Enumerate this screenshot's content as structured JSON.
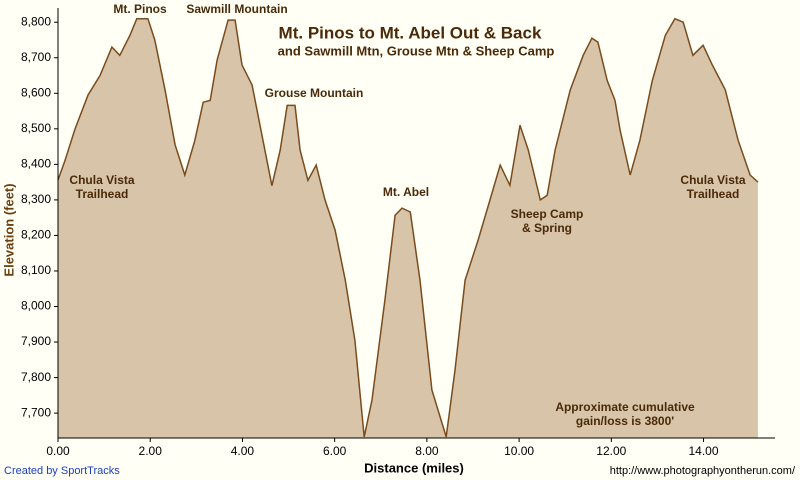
{
  "chart_data": {
    "type": "area",
    "title": "Mt. Pinos to Mt. Abel Out & Back",
    "subtitle": "and Sawmill Mtn, Grouse Mtn & Sheep Camp",
    "x_label": "Distance (miles)",
    "y_label": "Elevation (feet)",
    "credit": "Created by SportTracks",
    "url": "http://www.photographyontherun.com/",
    "annotations": [
      [
        "Mt. Pinos"
      ],
      [
        "Sawmill Mountain"
      ],
      [
        "Grouse Mountain"
      ],
      [
        "Mt. Abel"
      ],
      [
        "Sheep Camp",
        "& Spring"
      ],
      [
        "Chula Vista",
        "Trailhead"
      ],
      [
        "Chula Vista",
        "Trailhead"
      ],
      [
        "Approximate cumulative",
        "gain/loss is 3800'"
      ]
    ],
    "color": "#d8c4a8",
    "line_color": "#7a4b1c",
    "grid": false,
    "xlim": [
      0,
      15.55
    ],
    "ylim": [
      7630,
      8840
    ],
    "xticks": [
      {
        "value": 0,
        "label": "0.00"
      },
      {
        "value": 2,
        "label": "2.00"
      },
      {
        "value": 4,
        "label": "4.00"
      },
      {
        "value": 6,
        "label": "6.00"
      },
      {
        "value": 8,
        "label": "8.00"
      },
      {
        "value": 10,
        "label": "10.00"
      },
      {
        "value": 12,
        "label": "12.00"
      },
      {
        "value": 14,
        "label": "14.00"
      }
    ],
    "yticks": [
      {
        "value": 7700,
        "label": "7,700"
      },
      {
        "value": 7800,
        "label": "7,800"
      },
      {
        "value": 7900,
        "label": "7,900"
      },
      {
        "value": 8000,
        "label": "8,000"
      },
      {
        "value": 8100,
        "label": "8,100"
      },
      {
        "value": 8200,
        "label": "8,200"
      },
      {
        "value": 8300,
        "label": "8,300"
      },
      {
        "value": 8400,
        "label": "8,400"
      },
      {
        "value": 8500,
        "label": "8,500"
      },
      {
        "value": 8600,
        "label": "8,600"
      },
      {
        "value": 8700,
        "label": "8,700"
      },
      {
        "value": 8800,
        "label": "8,800"
      }
    ],
    "x": [
      0,
      0.15,
      0.37,
      0.65,
      0.91,
      1.17,
      1.34,
      1.56,
      1.71,
      1.95,
      2.1,
      2.32,
      2.54,
      2.75,
      2.97,
      3.15,
      3.3,
      3.45,
      3.69,
      3.84,
      3.99,
      4.21,
      4.38,
      4.64,
      4.82,
      4.97,
      5.14,
      5.25,
      5.42,
      5.6,
      5.79,
      6.01,
      6.23,
      6.44,
      6.64,
      6.81,
      7.09,
      7.31,
      7.46,
      7.64,
      7.85,
      8.11,
      8.42,
      8.61,
      8.83,
      9.11,
      9.37,
      9.59,
      9.8,
      10.02,
      10.2,
      10.46,
      10.61,
      10.78,
      11.11,
      11.39,
      11.58,
      11.71,
      11.91,
      12.08,
      12.19,
      12.41,
      12.62,
      12.89,
      13.17,
      13.38,
      13.56,
      13.77,
      13.99,
      14.19,
      14.47,
      14.75,
      15.01,
      15.18
    ],
    "values": [
      8356,
      8410,
      8500,
      8595,
      8650,
      8730,
      8707,
      8763,
      8810,
      8810,
      8750,
      8610,
      8455,
      8370,
      8468,
      8575,
      8580,
      8693,
      8806,
      8806,
      8680,
      8623,
      8510,
      8340,
      8440,
      8566,
      8566,
      8440,
      8355,
      8398,
      8300,
      8215,
      8074,
      7905,
      7633,
      7737,
      8018,
      8257,
      8277,
      8266,
      8074,
      7765,
      7633,
      7821,
      8074,
      8187,
      8300,
      8398,
      8341,
      8510,
      8440,
      8300,
      8313,
      8440,
      8610,
      8707,
      8755,
      8744,
      8636,
      8580,
      8496,
      8370,
      8468,
      8636,
      8763,
      8810,
      8800,
      8707,
      8735,
      8680,
      8610,
      8468,
      8370,
      8350
    ]
  }
}
